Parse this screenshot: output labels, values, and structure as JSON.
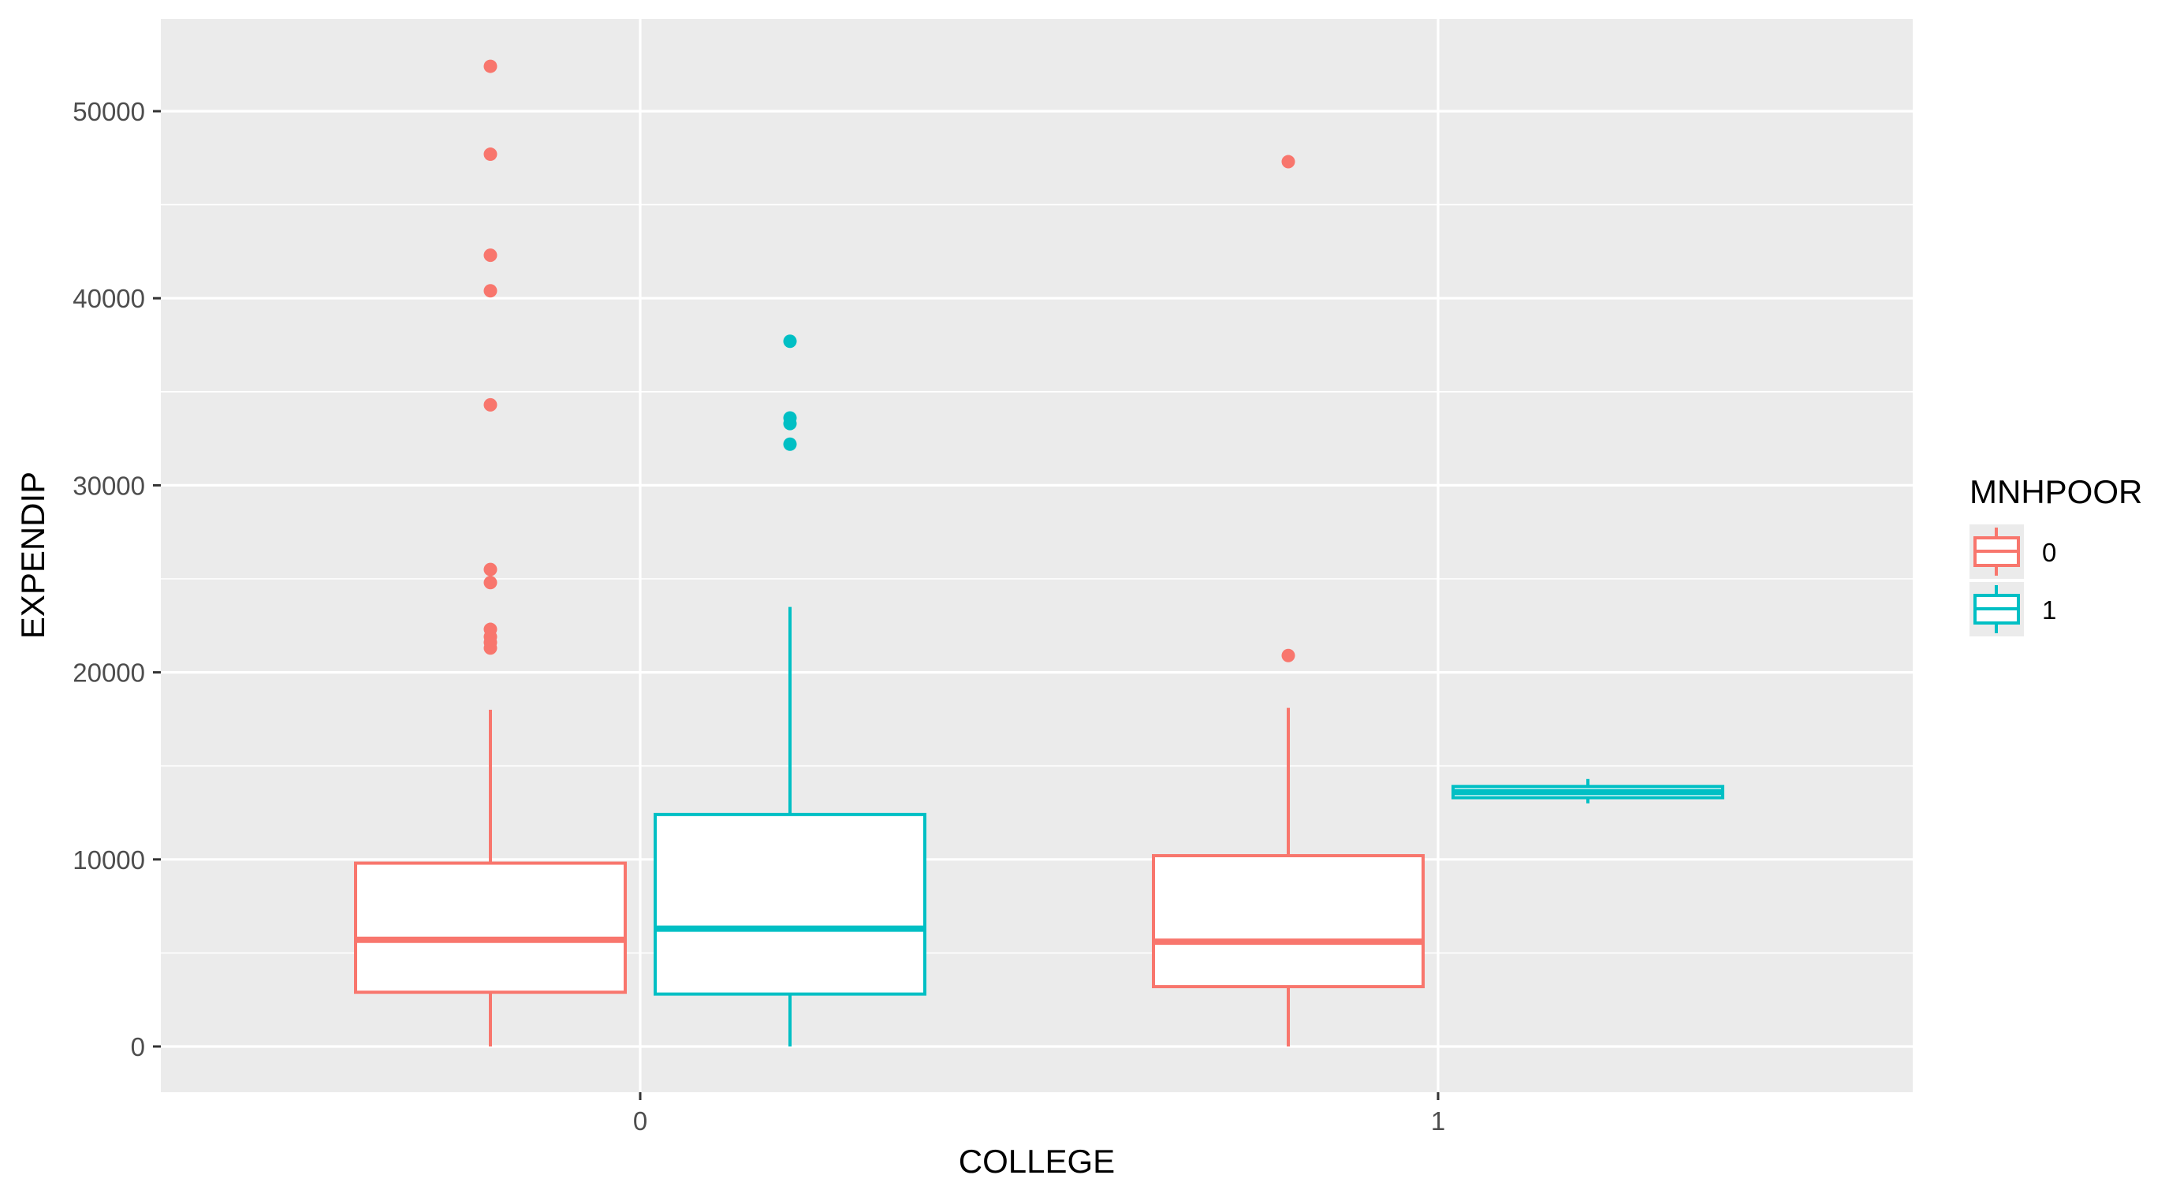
{
  "chart_data": {
    "type": "boxplot",
    "xlabel": "COLLEGE",
    "ylabel": "EXPENDIP",
    "categories": [
      "0",
      "1"
    ],
    "ylim": [
      -2500,
      55000
    ],
    "yticks": [
      0,
      10000,
      20000,
      30000,
      40000,
      50000
    ],
    "ytick_labels": [
      "0",
      "10000",
      "20000",
      "30000",
      "40000",
      "50000"
    ],
    "grid": true,
    "legend": {
      "title": "MNHPOOR",
      "placement": "right",
      "entries": [
        "0",
        "1"
      ]
    },
    "colors": {
      "0": "#F8766D",
      "1": "#00BFC4",
      "panel": "#EBEBEB",
      "grid": "#FFFFFF"
    },
    "series": [
      {
        "name": "0",
        "boxes": [
          {
            "category": "0",
            "lower_whisker": 0,
            "q1": 2900,
            "median": 5700,
            "q3": 9800,
            "upper_whisker": 18000,
            "outliers": [
              52400,
              47700,
              42300,
              40400,
              34300,
              25500,
              24800,
              22300,
              21900,
              21600,
              21300
            ]
          },
          {
            "category": "1",
            "lower_whisker": 0,
            "q1": 3200,
            "median": 5600,
            "q3": 10200,
            "upper_whisker": 18100,
            "outliers": [
              47300,
              20900
            ]
          }
        ]
      },
      {
        "name": "1",
        "boxes": [
          {
            "category": "0",
            "lower_whisker": 0,
            "q1": 2800,
            "median": 6300,
            "q3": 12400,
            "upper_whisker": 23500,
            "outliers": [
              37700,
              33600,
              33300,
              32200
            ]
          },
          {
            "category": "1",
            "lower_whisker": 13000,
            "q1": 13300,
            "median": 13600,
            "q3": 13900,
            "upper_whisker": 14300,
            "outliers": []
          }
        ]
      }
    ]
  }
}
